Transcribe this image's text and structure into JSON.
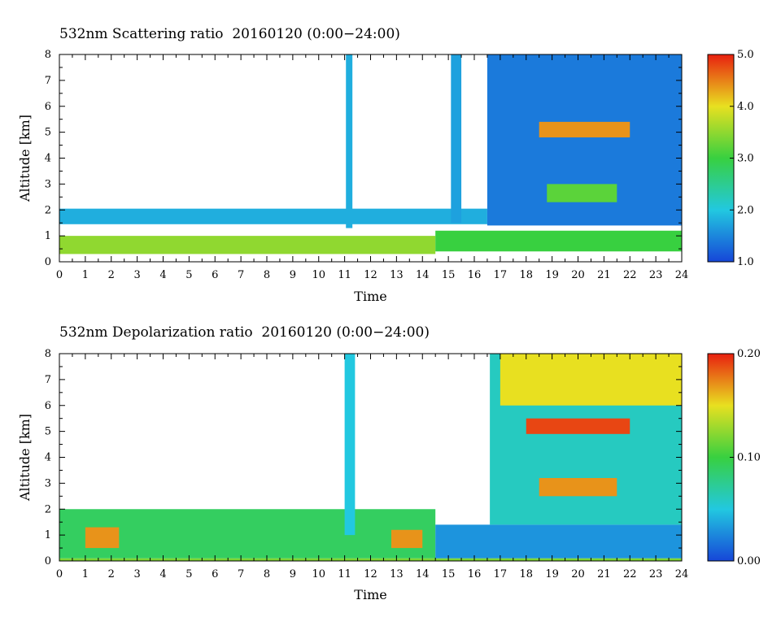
{
  "chart_data": [
    {
      "type": "heatmap",
      "title": "532nm Scattering ratio  20160120 (0:00−24:00)",
      "xlabel": "Time",
      "ylabel": "Altitude [km]",
      "xlim": [
        0,
        24
      ],
      "ylim": [
        0,
        8
      ],
      "x_ticks": [
        "0",
        "1",
        "2",
        "3",
        "4",
        "5",
        "6",
        "7",
        "8",
        "9",
        "10",
        "11",
        "12",
        "13",
        "14",
        "15",
        "16",
        "17",
        "18",
        "19",
        "20",
        "21",
        "22",
        "23",
        "24"
      ],
      "y_ticks": [
        "0",
        "1",
        "2",
        "3",
        "4",
        "5",
        "6",
        "7",
        "8"
      ],
      "colorbar": {
        "range": [
          1.0,
          5.0
        ],
        "ticks": [
          "1.0",
          "2.0",
          "3.0",
          "4.0",
          "5.0"
        ]
      },
      "colors": {
        "low": "#1646d8",
        "mid_low": "#22c8e0",
        "mid": "#38d040",
        "mid_high": "#e8e020",
        "high": "#e82010"
      },
      "features": [
        {
          "x0": 0,
          "x1": 14.5,
          "y0": 0.3,
          "y1": 1.0,
          "value": 3.5
        },
        {
          "x0": 14.5,
          "x1": 24,
          "y0": 0.4,
          "y1": 1.2,
          "value": 3.0
        },
        {
          "x0": 0,
          "x1": 16.5,
          "y0": 1.45,
          "y1": 2.05,
          "value": 1.8
        },
        {
          "x0": 11.05,
          "x1": 11.3,
          "y0": 1.3,
          "y1": 8.0,
          "value": 1.8
        },
        {
          "x0": 15.1,
          "x1": 15.5,
          "y0": 1.5,
          "y1": 8.0,
          "value": 1.7
        },
        {
          "x0": 16.5,
          "x1": 24,
          "y0": 1.4,
          "y1": 8.0,
          "value": 1.4
        },
        {
          "x0": 18.5,
          "x1": 22,
          "y0": 4.8,
          "y1": 5.4,
          "value": 4.4
        },
        {
          "x0": 18.8,
          "x1": 21.5,
          "y0": 2.3,
          "y1": 3.0,
          "value": 3.2
        }
      ]
    },
    {
      "type": "heatmap",
      "title": "532nm Depolarization ratio  20160120 (0:00−24:00)",
      "xlabel": "Time",
      "ylabel": "Altitude [km]",
      "xlim": [
        0,
        24
      ],
      "ylim": [
        0,
        8
      ],
      "x_ticks": [
        "0",
        "1",
        "2",
        "3",
        "4",
        "5",
        "6",
        "7",
        "8",
        "9",
        "10",
        "11",
        "12",
        "13",
        "14",
        "15",
        "16",
        "17",
        "18",
        "19",
        "20",
        "21",
        "22",
        "23",
        "24"
      ],
      "y_ticks": [
        "0",
        "1",
        "2",
        "3",
        "4",
        "5",
        "6",
        "7",
        "8"
      ],
      "colorbar": {
        "range": [
          0.0,
          0.2
        ],
        "ticks": [
          "0.00",
          "0.10",
          "0.20"
        ]
      },
      "colors": {
        "low": "#1646d8",
        "mid_low": "#22c8e0",
        "mid": "#38d040",
        "mid_high": "#e8e020",
        "high": "#e82010"
      },
      "features": [
        {
          "x0": 0,
          "x1": 14.5,
          "y0": 0.1,
          "y1": 2.0,
          "value": 0.09
        },
        {
          "x0": 1.0,
          "x1": 2.3,
          "y0": 0.5,
          "y1": 1.3,
          "value": 0.17
        },
        {
          "x0": 12.8,
          "x1": 14.0,
          "y0": 0.5,
          "y1": 1.2,
          "value": 0.17
        },
        {
          "x0": 11.0,
          "x1": 11.4,
          "y0": 1.0,
          "y1": 8.0,
          "value": 0.05
        },
        {
          "x0": 14.5,
          "x1": 24,
          "y0": 0.1,
          "y1": 1.4,
          "value": 0.03
        },
        {
          "x0": 16.6,
          "x1": 24,
          "y0": 1.4,
          "y1": 8.0,
          "value": 0.06
        },
        {
          "x0": 17.0,
          "x1": 24,
          "y0": 6.0,
          "y1": 8.0,
          "value": 0.15
        },
        {
          "x0": 18.0,
          "x1": 22.0,
          "y0": 4.9,
          "y1": 5.5,
          "value": 0.19
        },
        {
          "x0": 18.5,
          "x1": 21.5,
          "y0": 2.5,
          "y1": 3.2,
          "value": 0.17
        },
        {
          "x0": 0,
          "x1": 24,
          "y0": 0,
          "y1": 0.1,
          "value": 0.12
        }
      ]
    }
  ]
}
